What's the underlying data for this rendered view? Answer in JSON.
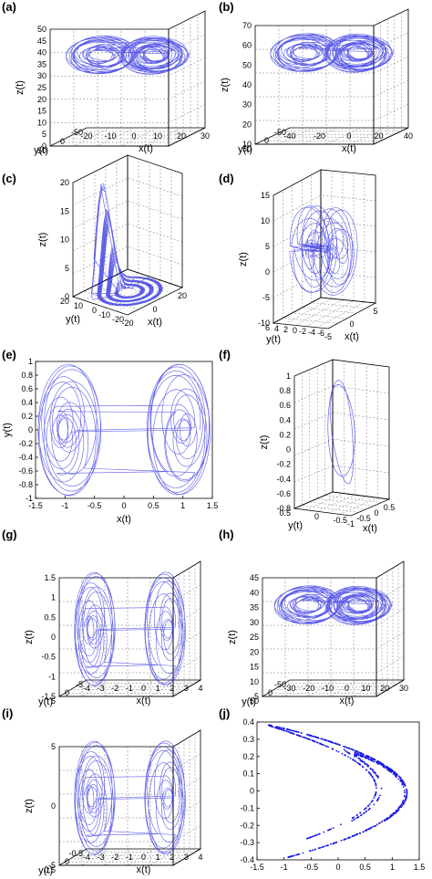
{
  "chart_data": [
    {
      "id": "a",
      "panel": "(a)",
      "type": "line",
      "kind": "3d",
      "xlabel": "x(t)",
      "ylabel": "y(t)",
      "zlabel": "z(t)",
      "xticks": [
        "-20",
        "-10",
        "0",
        "10",
        "20",
        "30"
      ],
      "yticks": [
        "-50",
        "0",
        "50"
      ],
      "zticks": [
        "0",
        "5",
        "10",
        "15",
        "20",
        "25",
        "30",
        "35",
        "40",
        "45",
        "50"
      ],
      "xlim": [
        -20,
        30
      ],
      "ylim": [
        -50,
        50
      ],
      "zlim": [
        0,
        50
      ],
      "series": [
        {
          "attractor": "butterfly",
          "values": []
        }
      ]
    },
    {
      "id": "b",
      "panel": "(b)",
      "type": "line",
      "kind": "3d",
      "xlabel": "x(t)",
      "ylabel": "y(t)",
      "zlabel": "z(t)",
      "xticks": [
        "-40",
        "-20",
        "0",
        "20",
        "40"
      ],
      "yticks": [
        "-50",
        "0",
        "50"
      ],
      "zticks": [
        "10",
        "20",
        "30",
        "40",
        "50",
        "60",
        "70"
      ],
      "xlim": [
        -40,
        40
      ],
      "ylim": [
        -50,
        50
      ],
      "zlim": [
        10,
        70
      ],
      "series": [
        {
          "attractor": "butterfly",
          "values": []
        }
      ]
    },
    {
      "id": "c",
      "panel": "(c)",
      "type": "line",
      "kind": "3d",
      "xlabel": "x(t)",
      "ylabel": "y(t)",
      "zlabel": "z(t)",
      "xticks": [
        "-20",
        "0",
        "20"
      ],
      "yticks": [
        "-20",
        "-10",
        "0",
        "10",
        "20"
      ],
      "zticks": [
        "0",
        "5",
        "10",
        "15",
        "20"
      ],
      "xlim": [
        -20,
        20
      ],
      "ylim": [
        -20,
        20
      ],
      "zlim": [
        0,
        20
      ],
      "series": [
        {
          "attractor": "rossler",
          "values": []
        }
      ]
    },
    {
      "id": "d",
      "panel": "(d)",
      "type": "line",
      "kind": "3d",
      "xlabel": "x(t)",
      "ylabel": "y(t)",
      "zlabel": "z(t)",
      "xticks": [
        "-5",
        "0",
        "5"
      ],
      "yticks": [
        "-6",
        "-4",
        "-2",
        "0",
        "2",
        "4",
        "6"
      ],
      "zticks": [
        "-10",
        "-5",
        "0",
        "5",
        "10",
        "15"
      ],
      "xlim": [
        -5,
        5
      ],
      "ylim": [
        -6,
        6
      ],
      "zlim": [
        -10,
        15
      ],
      "series": [
        {
          "attractor": "lobes",
          "values": []
        }
      ]
    },
    {
      "id": "e",
      "panel": "(e)",
      "type": "line",
      "kind": "2d",
      "xlabel": "x(t)",
      "ylabel": "y(t)",
      "xticks": [
        "-1.5",
        "-1",
        "-0.5",
        "0",
        "0.5",
        "1",
        "1.5"
      ],
      "yticks": [
        "-1",
        "-0.8",
        "-0.6",
        "-0.4",
        "-0.2",
        "0",
        "0.2",
        "0.4",
        "0.6",
        "0.8",
        "1"
      ],
      "xlim": [
        -1.5,
        1.5
      ],
      "ylim": [
        -1,
        1
      ],
      "series": [
        {
          "attractor": "double-scroll",
          "values": []
        }
      ]
    },
    {
      "id": "f",
      "panel": "(f)",
      "type": "line",
      "kind": "3d",
      "xlabel": "x(t)",
      "ylabel": "y(t)",
      "zlabel": "z(t)",
      "xticks": [
        "-1",
        "-0.5",
        "0",
        "0.5"
      ],
      "yticks": [
        "-0.5",
        "0",
        "0.5"
      ],
      "zticks": [
        "-0.8",
        "-0.6",
        "-0.4",
        "-0.2",
        "0",
        "0.2",
        "0.4",
        "0.6",
        "0.8",
        "1"
      ],
      "xlim": [
        -1,
        0.5
      ],
      "ylim": [
        -0.5,
        0.5
      ],
      "zlim": [
        -0.8,
        1
      ],
      "series": [
        {
          "attractor": "ribbon",
          "values": []
        }
      ]
    },
    {
      "id": "g",
      "panel": "(g)",
      "type": "line",
      "kind": "3d",
      "xlabel": "x(t)",
      "ylabel": "y(t)",
      "zlabel": "z(t)",
      "xticks": [
        "-4",
        "-3",
        "-2",
        "-1",
        "0",
        "1",
        "2",
        "3",
        "4"
      ],
      "yticks": [
        "-5",
        "0",
        "5"
      ],
      "zticks": [
        "-1.5",
        "-1",
        "-0.5",
        "0",
        "0.5",
        "1",
        "1.5"
      ],
      "xlim": [
        -4,
        4
      ],
      "ylim": [
        -5,
        5
      ],
      "zlim": [
        -1.5,
        1.5
      ],
      "series": [
        {
          "attractor": "double-scroll",
          "values": []
        }
      ]
    },
    {
      "id": "h",
      "panel": "(h)",
      "type": "line",
      "kind": "3d",
      "xlabel": "x(t)",
      "ylabel": "y(t)",
      "zlabel": "z(t)",
      "xticks": [
        "-30",
        "-20",
        "-10",
        "0",
        "10",
        "20",
        "30"
      ],
      "yticks": [
        "-50",
        "0",
        "50"
      ],
      "zticks": [
        "5",
        "10",
        "15",
        "20",
        "25",
        "30",
        "35",
        "40",
        "45"
      ],
      "xlim": [
        -30,
        30
      ],
      "ylim": [
        -50,
        50
      ],
      "zlim": [
        5,
        45
      ],
      "series": [
        {
          "attractor": "butterfly",
          "values": []
        }
      ]
    },
    {
      "id": "i",
      "panel": "(i)",
      "type": "line",
      "kind": "3d",
      "xlabel": "x(t)",
      "ylabel": "y(t)",
      "zlabel": "z(t)",
      "xticks": [
        "-4",
        "-3",
        "-2",
        "-1",
        "0",
        "1",
        "2",
        "3",
        "4"
      ],
      "yticks": [
        "-0.5",
        "0",
        "0.5"
      ],
      "zticks": [
        "-5",
        "0",
        "5"
      ],
      "xlim": [
        -4,
        4
      ],
      "ylim": [
        -0.5,
        0.5
      ],
      "zlim": [
        -5,
        5
      ],
      "series": [
        {
          "attractor": "double-scroll",
          "values": []
        }
      ]
    },
    {
      "id": "j",
      "panel": "(j)",
      "type": "scatter",
      "kind": "2d",
      "xlabel": "",
      "ylabel": "",
      "xticks": [
        "-1.5",
        "-1",
        "-0.5",
        "0",
        "0.5",
        "1",
        "1.5"
      ],
      "yticks": [
        "-0.4",
        "-0.3",
        "-0.2",
        "-0.1",
        "0",
        "0.1",
        "0.2",
        "0.3",
        "0.4"
      ],
      "xlim": [
        -1.5,
        1.5
      ],
      "ylim": [
        -0.4,
        0.4
      ],
      "series": [
        {
          "attractor": "henon",
          "values": []
        }
      ]
    }
  ],
  "colors": {
    "trace": "#1a1adf",
    "frame": "#000000",
    "grid": "#777777"
  }
}
